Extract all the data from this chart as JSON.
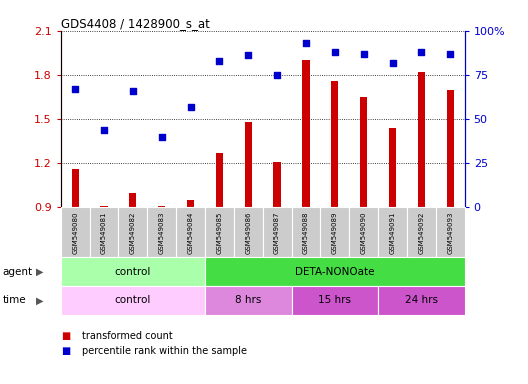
{
  "title": "GDS4408 / 1428900_s_at",
  "samples": [
    "GSM549080",
    "GSM549081",
    "GSM549082",
    "GSM549083",
    "GSM549084",
    "GSM549085",
    "GSM549086",
    "GSM549087",
    "GSM549088",
    "GSM549089",
    "GSM549090",
    "GSM549091",
    "GSM549092",
    "GSM549093"
  ],
  "transformed_count": [
    1.16,
    0.91,
    1.0,
    0.91,
    0.95,
    1.27,
    1.48,
    1.21,
    1.9,
    1.76,
    1.65,
    1.44,
    1.82,
    1.7
  ],
  "percentile_rank": [
    67,
    44,
    66,
    40,
    57,
    83,
    86,
    75,
    93,
    88,
    87,
    82,
    88,
    87
  ],
  "bar_color": "#cc0000",
  "dot_color": "#0000cc",
  "ylim_left": [
    0.9,
    2.1
  ],
  "ylim_right": [
    0,
    100
  ],
  "yticks_left": [
    0.9,
    1.2,
    1.5,
    1.8,
    2.1
  ],
  "yticks_right": [
    0,
    25,
    50,
    75,
    100
  ],
  "ytick_labels_left": [
    "0.9",
    "1.2",
    "1.5",
    "1.8",
    "2.1"
  ],
  "ytick_labels_right": [
    "0",
    "25",
    "50",
    "75",
    "100%"
  ],
  "agent_groups": [
    {
      "label": "control",
      "start": 0,
      "end": 5,
      "color": "#aaffaa"
    },
    {
      "label": "DETA-NONOate",
      "start": 5,
      "end": 14,
      "color": "#44dd44"
    }
  ],
  "time_colors": [
    "#ffccff",
    "#dd88dd",
    "#cc55cc",
    "#cc55cc"
  ],
  "time_groups": [
    {
      "label": "control",
      "start": 0,
      "end": 5
    },
    {
      "label": "8 hrs",
      "start": 5,
      "end": 8
    },
    {
      "label": "15 hrs",
      "start": 8,
      "end": 11
    },
    {
      "label": "24 hrs",
      "start": 11,
      "end": 14
    }
  ],
  "bg_color": "#ffffff",
  "tick_label_color_left": "#cc0000",
  "tick_label_color_right": "#0000cc",
  "label_box_color": "#cccccc",
  "bar_width": 0.25
}
